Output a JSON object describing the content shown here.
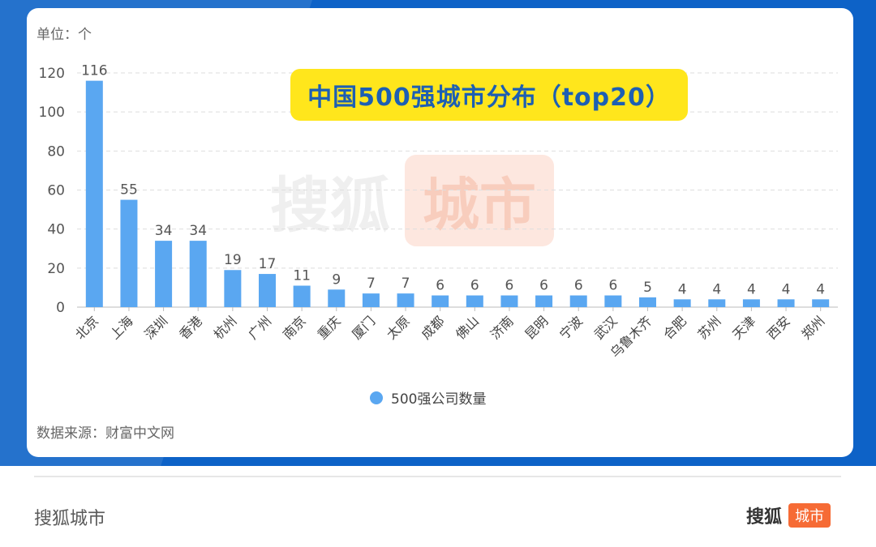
{
  "chart_data": {
    "type": "bar",
    "title": "中国500强城市分布（top20）",
    "unit_label": "单位：个",
    "source": "数据来源：财富中文网",
    "legend": "500强公司数量",
    "categories": [
      "北京",
      "上海",
      "深圳",
      "香港",
      "杭州",
      "广州",
      "南京",
      "重庆",
      "厦门",
      "太原",
      "成都",
      "佛山",
      "济南",
      "昆明",
      "宁波",
      "武汉",
      "乌鲁木齐",
      "合肥",
      "苏州",
      "天津",
      "西安",
      "郑州"
    ],
    "series": [
      {
        "name": "500强公司数量",
        "values": [
          116,
          55,
          34,
          34,
          19,
          17,
          11,
          9,
          7,
          7,
          6,
          6,
          6,
          6,
          6,
          6,
          5,
          4,
          4,
          4,
          4,
          4
        ]
      }
    ],
    "ylim": [
      0,
      120
    ],
    "yticks": [
      0,
      20,
      40,
      60,
      80,
      100,
      120
    ],
    "grid": true,
    "legend_position": "bottom"
  },
  "watermark": {
    "text": "搜狐",
    "badge": "城市"
  },
  "footer": {
    "left_text": "搜狐城市",
    "brand_text": "搜狐",
    "brand_badge": "城市"
  },
  "colors": {
    "bar": "#5aa7f1",
    "title_bg": "#ffe61c",
    "title_text": "#1d5fb3",
    "header_bg": "#0d62c7",
    "brand_orange": "#f66b35"
  }
}
